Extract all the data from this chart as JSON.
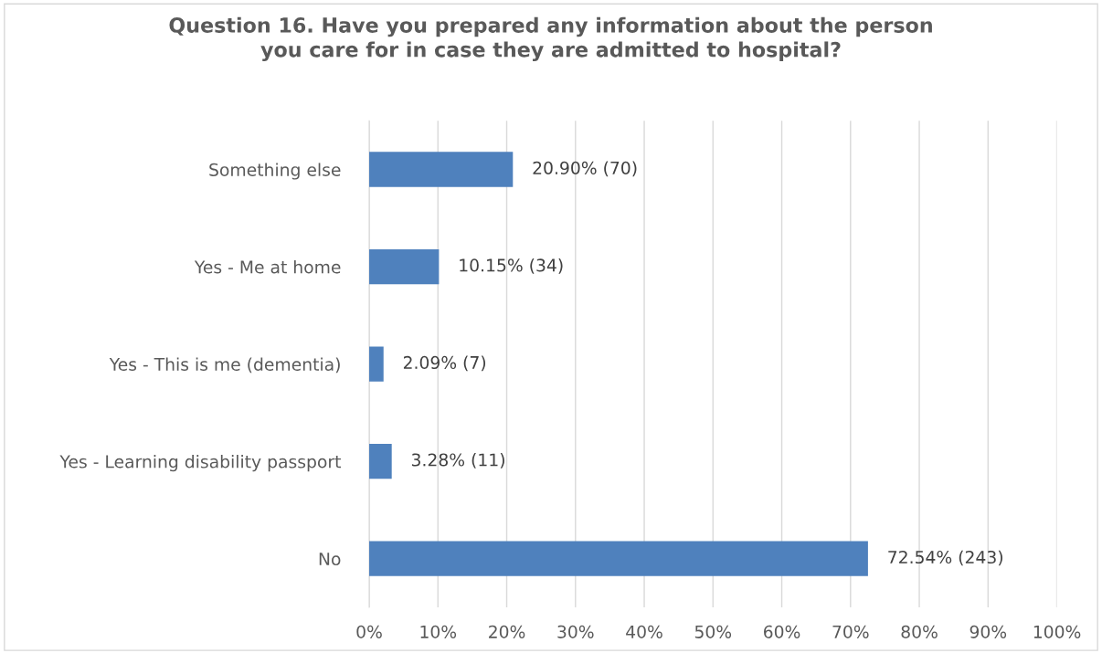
{
  "chart_data": {
    "type": "bar",
    "orientation": "horizontal",
    "title": "Question 16. Have you prepared any information about the person\nyou care for in case they are admitted to hospital?",
    "categories": [
      "Something else",
      "Yes - Me at home",
      "Yes - This is me (dementia)",
      "Yes - Learning disability passport",
      "No"
    ],
    "values": [
      20.9,
      10.15,
      2.09,
      3.28,
      72.54
    ],
    "value_labels": [
      "20.90% (70)",
      "10.15% (34)",
      "2.09% (7)",
      "3.28% (11)",
      "72.54% (243)"
    ],
    "color": "#4f81bd",
    "xlim": [
      0,
      100
    ],
    "xticks": [
      {
        "value": 0,
        "label": "0%"
      },
      {
        "value": 10,
        "label": "10%"
      },
      {
        "value": 20,
        "label": "20%"
      },
      {
        "value": 30,
        "label": "30%"
      },
      {
        "value": 40,
        "label": "40%"
      },
      {
        "value": 50,
        "label": "50%"
      },
      {
        "value": 60,
        "label": "60%"
      },
      {
        "value": 70,
        "label": "70%"
      },
      {
        "value": 80,
        "label": "80%"
      },
      {
        "value": 90,
        "label": "90%"
      },
      {
        "value": 100,
        "label": "100%"
      }
    ],
    "grid": "x",
    "legend": false
  }
}
